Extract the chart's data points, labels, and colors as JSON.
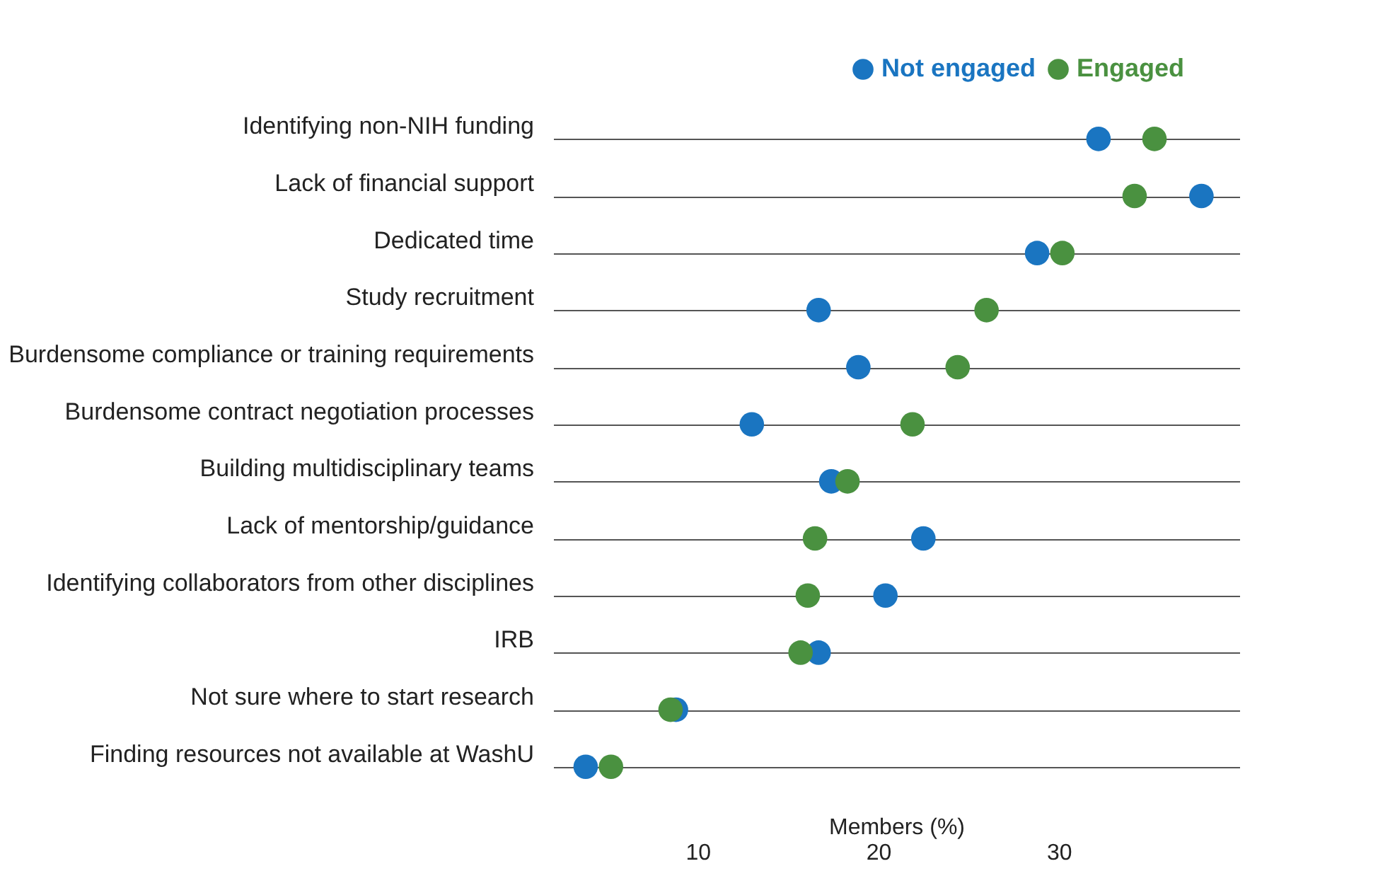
{
  "chart_data": {
    "type": "scatter",
    "orientation": "horizontal",
    "xlabel": "Members (%)",
    "categories": [
      "Identifying non-NIH funding",
      "Lack of financial support",
      "Dedicated time",
      "Study recruitment",
      "Burdensome compliance or training requirements",
      "Burdensome contract negotiation processes",
      "Building multidisciplinary teams",
      "Lack of mentorship/guidance",
      "Identifying collaborators from other disciplines",
      "IRB",
      "Not sure where to start research",
      "Finding resources not available at WashU"
    ],
    "series": [
      {
        "name": "Not engaged",
        "color": "#1a75c1",
        "values": [
          32.2,
          37.9,
          28.8,
          16.7,
          18.9,
          13.0,
          17.4,
          22.5,
          20.4,
          16.7,
          8.8,
          3.8
        ]
      },
      {
        "name": "Engaged",
        "color": "#4a9140",
        "values": [
          35.3,
          34.2,
          30.2,
          26.0,
          24.4,
          21.9,
          18.3,
          16.5,
          16.1,
          15.7,
          8.5,
          5.2
        ]
      }
    ],
    "xlim": [
      2,
      40
    ],
    "xticks": [
      10,
      20,
      30
    ],
    "grid": "y",
    "legend": "top right",
    "marker": "circle"
  }
}
